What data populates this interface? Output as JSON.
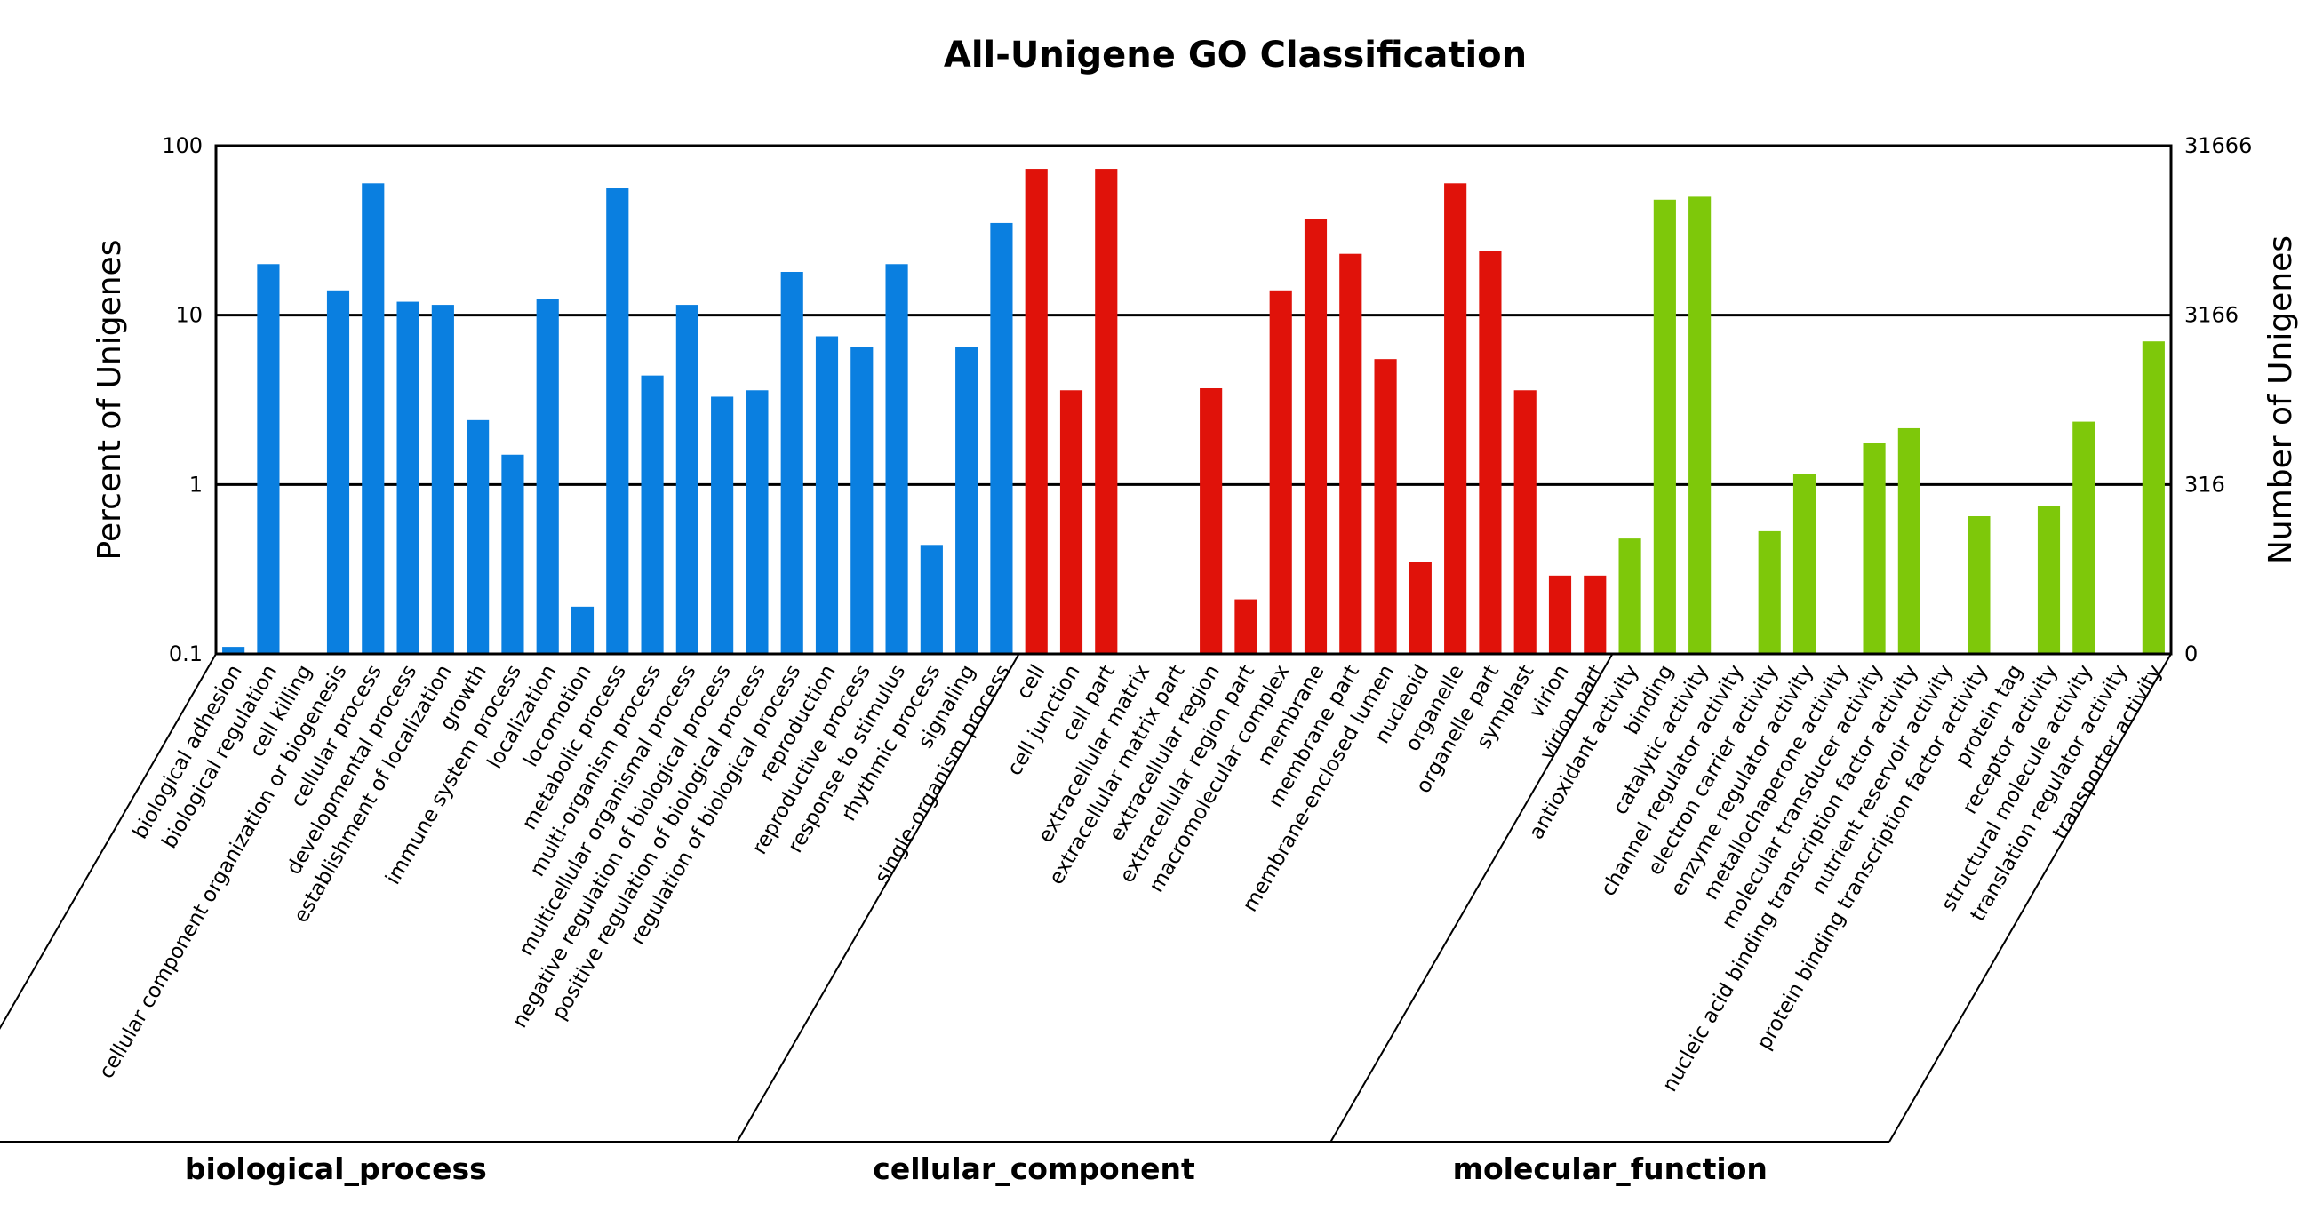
{
  "chart_data": {
    "type": "bar",
    "title": "All-Unigene GO Classification",
    "ylabel": "Percent of Unigenes",
    "ylabel_right": "Number of Unigenes",
    "yscale": "log",
    "ylim": [
      0.1,
      100
    ],
    "y_ticks": [
      "0.1",
      "1",
      "10",
      "100"
    ],
    "y_ticks_right": [
      "0",
      "316",
      "3166",
      "31666"
    ],
    "grid": true,
    "colors": {
      "biological_process": "#0a7fe0",
      "cellular_component": "#e0120a",
      "molecular_function": "#7ec80a"
    },
    "groups": [
      {
        "name": "biological_process",
        "categories": [
          "biological adhesion",
          "biological regulation",
          "cell killing",
          "cellular component organization or biogenesis",
          "cellular process",
          "developmental process",
          "establishment of localization",
          "growth",
          "immune system process",
          "localization",
          "locomotion",
          "metabolic process",
          "multi-organism process",
          "multicellular organismal process",
          "negative regulation of biological process",
          "positive regulation of biological process",
          "regulation of biological process",
          "reproduction",
          "reproductive process",
          "response to stimulus",
          "rhythmic process",
          "signaling",
          "single-organism process"
        ],
        "values": [
          0.11,
          20,
          0,
          14,
          60,
          12,
          11.5,
          2.4,
          1.5,
          12.5,
          0.19,
          56,
          4.4,
          11.5,
          3.3,
          3.6,
          18,
          7.5,
          6.5,
          20,
          0.44,
          6.5,
          35
        ]
      },
      {
        "name": "cellular_component",
        "categories": [
          "cell",
          "cell junction",
          "cell part",
          "extracellular matrix",
          "extracellular matrix part",
          "extracellular region",
          "extracellular region part",
          "macromolecular complex",
          "membrane",
          "membrane part",
          "membrane-enclosed lumen",
          "nucleoid",
          "organelle",
          "organelle part",
          "symplast",
          "virion",
          "virion part"
        ],
        "values": [
          73,
          3.6,
          73,
          0,
          0,
          3.7,
          0.21,
          14,
          37,
          23,
          5.5,
          0.35,
          60,
          24,
          3.6,
          0.29,
          0.29
        ]
      },
      {
        "name": "molecular_function",
        "categories": [
          "antioxidant activity",
          "binding",
          "catalytic activity",
          "channel regulator activity",
          "electron carrier activity",
          "enzyme regulator activity",
          "metallochaperone activity",
          "molecular transducer activity",
          "nucleic acid binding transcription factor activity",
          "nutrient reservoir activity",
          "protein binding transcription factor activity",
          "protein tag",
          "receptor activity",
          "structural molecule activity",
          "translation regulator activity",
          "transporter activity"
        ],
        "values": [
          0.48,
          48,
          50,
          0,
          0.53,
          1.15,
          0,
          1.75,
          2.15,
          0,
          0.65,
          0,
          0.75,
          2.35,
          0,
          7
        ]
      }
    ]
  }
}
